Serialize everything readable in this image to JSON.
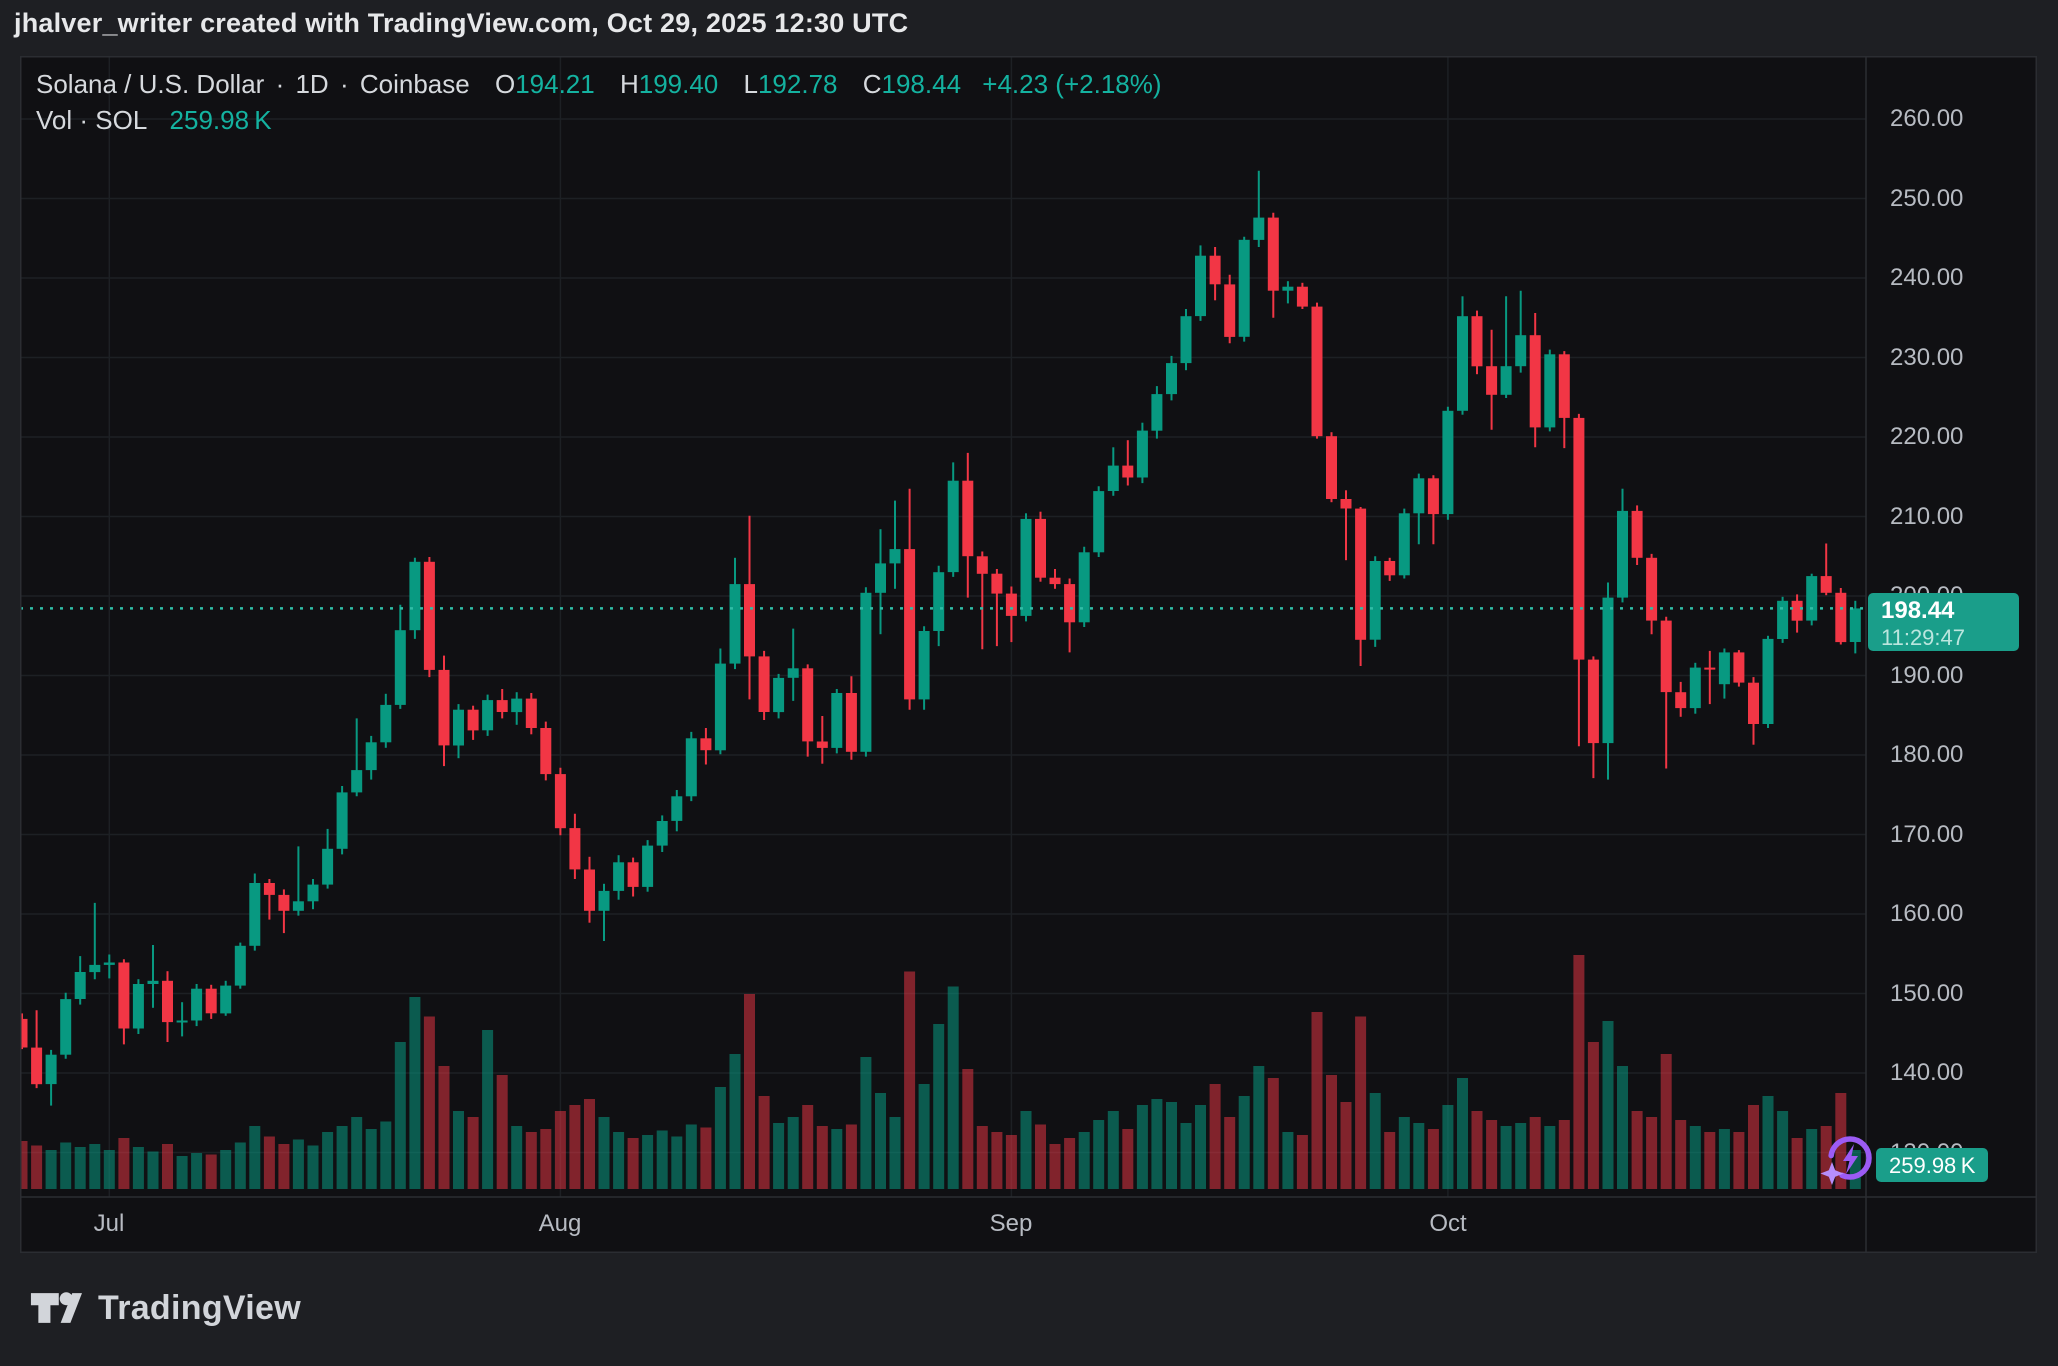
{
  "header": {
    "attribution": "jhalver_writer created with TradingView.com, Oct 29, 2025 12:30 UTC"
  },
  "legend": {
    "symbol": "Solana / U.S. Dollar",
    "sep": "·",
    "interval": "1D",
    "exchange": "Coinbase",
    "o_label": "O",
    "o_value": "194.21",
    "h_label": "H",
    "h_value": "199.40",
    "l_label": "L",
    "l_value": "192.78",
    "c_label": "C",
    "c_value": "198.44",
    "change": "+4.23 (+2.18%)",
    "vol_label": "Vol · SOL",
    "vol_value": "259.98 K"
  },
  "price_scale": {
    "ticks": [
      "260.00",
      "250.00",
      "240.00",
      "230.00",
      "220.00",
      "210.00",
      "200.00",
      "190.00",
      "180.00",
      "170.00",
      "160.00",
      "150.00",
      "140.00",
      "130.00"
    ],
    "price_badge": {
      "price": "198.44",
      "countdown": "11:29:47"
    },
    "volume_badge": "259.98 K"
  },
  "time_scale": {
    "months": [
      "Jul",
      "Aug",
      "Sep",
      "Oct"
    ]
  },
  "footer": {
    "brand": "TradingView"
  },
  "icons": {
    "boost_badge": "lightning-boost-icon",
    "logo": "tradingview-logo-icon"
  },
  "colors": {
    "up": "#089981",
    "down": "#f23645",
    "vol_up": "rgba(8,153,129,0.55)",
    "vol_down": "rgba(242,54,69,0.50)",
    "teal_text": "#14b2a0",
    "badge_bg": "#1a9e8a",
    "grid": "#1d2024",
    "dotted_line": "#2fbda6",
    "axis_text": "#b7bbc2",
    "legend_text": "#d6d9dd",
    "background_outer": "#1e1f23",
    "background_chart": "#101013",
    "frame_border": "#2b2d32",
    "boost_purple": "#9c5bf5",
    "boost_star": "#b78efb"
  },
  "chart_data": {
    "type": "candlestick",
    "title": "Solana / U.S. Dollar · 1D · Coinbase",
    "subtitle_volume": "Vol · SOL 259.98 K",
    "x_axis": {
      "labels": [
        "Jul",
        "Aug",
        "Sep",
        "Oct"
      ],
      "month_start_indices": [
        6,
        37,
        68,
        98
      ],
      "start_date": "Jun 25",
      "end_date": "Oct 29"
    },
    "y_axis": {
      "ref_price": 260,
      "min": 128,
      "max": 262,
      "tick_step": 10,
      "grid": true,
      "side": "right"
    },
    "last": {
      "open": 194.21,
      "high": 199.4,
      "low": 192.78,
      "close": 198.44,
      "change": "+4.23",
      "change_pct": "+2.18%",
      "countdown": "11:29:47",
      "volume_k": 259.98
    },
    "candles": {
      "open": [
        146.8,
        143.2,
        138.6,
        142.3,
        149.3,
        152.7,
        153.6,
        153.9,
        145.6,
        151.2,
        151.6,
        146.4,
        146.6,
        150.6,
        147.5,
        151.0,
        156.0,
        163.9,
        162.4,
        160.4,
        161.6,
        163.7,
        168.2,
        175.3,
        178.1,
        181.6,
        186.3,
        195.7,
        204.3,
        190.7,
        181.2,
        185.7,
        183.1,
        186.9,
        185.4,
        187.1,
        183.4,
        177.6,
        170.8,
        165.6,
        160.4,
        162.9,
        166.5,
        163.4,
        168.6,
        171.7,
        174.8,
        182.1,
        180.6,
        191.5,
        201.5,
        192.4,
        185.4,
        189.7,
        190.9,
        181.7,
        180.9,
        187.8,
        180.4,
        200.4,
        204.1,
        205.9,
        187.0,
        195.6,
        203.0,
        214.5,
        205.0,
        202.8,
        200.3,
        197.5,
        209.7,
        202.3,
        201.5,
        196.7,
        205.5,
        213.2,
        216.4,
        214.9,
        220.8,
        225.4,
        229.3,
        235.2,
        242.8,
        239.2,
        232.6,
        244.8,
        247.6,
        238.4,
        238.9,
        236.4,
        220.1,
        212.2,
        211.0,
        194.5,
        204.4,
        202.6,
        210.4,
        214.8,
        210.3,
        223.3,
        235.2,
        228.9,
        225.3,
        228.9,
        232.8,
        221.2,
        230.4,
        222.4,
        192.0,
        181.5,
        199.8,
        210.7,
        204.8,
        196.9,
        187.9,
        185.9,
        191.0,
        188.9,
        192.9,
        189.1,
        183.9,
        194.6,
        199.4,
        196.9,
        202.5,
        200.4,
        194.21
      ],
      "high": [
        147.5,
        147.9,
        142.9,
        150.1,
        154.7,
        161.4,
        154.9,
        154.3,
        151.8,
        156.1,
        152.8,
        148.9,
        151.2,
        151.1,
        151.6,
        156.4,
        165.1,
        164.4,
        163.1,
        168.5,
        164.4,
        170.7,
        176.1,
        184.6,
        182.4,
        187.7,
        198.9,
        204.8,
        204.9,
        192.5,
        186.4,
        186.2,
        187.6,
        188.3,
        187.9,
        187.8,
        184.2,
        178.4,
        172.6,
        167.2,
        163.8,
        167.4,
        167.1,
        169.3,
        172.4,
        175.6,
        182.9,
        183.4,
        193.4,
        204.8,
        210.1,
        193.1,
        190.2,
        195.9,
        191.4,
        184.9,
        188.3,
        189.9,
        201.1,
        208.4,
        212.0,
        213.5,
        196.2,
        203.8,
        216.8,
        218.0,
        205.6,
        203.4,
        201.2,
        210.4,
        210.6,
        203.4,
        202.2,
        206.2,
        213.8,
        218.7,
        219.6,
        221.8,
        226.4,
        230.2,
        236.1,
        244.1,
        243.9,
        240.4,
        245.2,
        253.5,
        248.2,
        239.6,
        239.4,
        236.9,
        220.6,
        213.3,
        211.2,
        205.0,
        204.8,
        211.0,
        215.4,
        215.2,
        223.8,
        237.7,
        235.9,
        233.5,
        237.7,
        238.4,
        235.6,
        231.0,
        230.8,
        222.9,
        192.4,
        201.7,
        213.5,
        211.4,
        205.3,
        197.4,
        189.2,
        191.6,
        193.1,
        193.4,
        193.2,
        189.8,
        195.0,
        199.9,
        200.2,
        202.8,
        206.6,
        201.0,
        199.4
      ],
      "low": [
        143.0,
        138.1,
        135.9,
        141.8,
        148.6,
        151.8,
        151.9,
        143.6,
        144.9,
        148.2,
        143.9,
        144.6,
        145.9,
        146.8,
        147.2,
        150.6,
        155.4,
        159.3,
        157.6,
        159.8,
        160.6,
        163.2,
        167.5,
        174.8,
        176.9,
        180.9,
        185.8,
        194.6,
        189.8,
        178.6,
        179.6,
        181.9,
        182.4,
        184.6,
        183.8,
        182.6,
        176.8,
        169.9,
        164.4,
        158.9,
        156.6,
        161.8,
        162.2,
        162.8,
        167.8,
        170.4,
        174.2,
        178.8,
        180.1,
        190.8,
        187.0,
        184.4,
        184.6,
        186.8,
        179.8,
        178.9,
        180.2,
        179.4,
        179.8,
        195.2,
        200.9,
        185.7,
        185.7,
        193.7,
        202.4,
        199.8,
        193.3,
        193.7,
        194.2,
        196.8,
        201.8,
        200.9,
        192.9,
        196.1,
        204.9,
        212.6,
        213.9,
        214.2,
        219.8,
        224.6,
        228.4,
        234.6,
        237.2,
        231.8,
        232.0,
        243.9,
        235.0,
        236.8,
        236.1,
        219.8,
        211.8,
        204.5,
        191.2,
        193.6,
        201.9,
        202.2,
        206.5,
        206.5,
        209.6,
        222.8,
        227.9,
        220.9,
        224.9,
        228.1,
        218.7,
        220.7,
        218.6,
        181.1,
        177.1,
        176.9,
        199.2,
        203.9,
        195.2,
        178.3,
        184.8,
        185.2,
        186.4,
        187.1,
        188.6,
        181.3,
        183.4,
        194.1,
        195.4,
        196.3,
        200.1,
        193.9,
        192.78
      ],
      "close": [
        143.2,
        138.6,
        142.3,
        149.3,
        152.7,
        153.6,
        153.9,
        145.6,
        151.2,
        151.6,
        146.4,
        146.6,
        150.6,
        147.5,
        151.0,
        156.0,
        163.9,
        162.4,
        160.4,
        161.6,
        163.7,
        168.2,
        175.3,
        178.1,
        181.6,
        186.3,
        195.7,
        204.3,
        190.7,
        181.2,
        185.7,
        183.1,
        186.9,
        185.4,
        187.1,
        183.4,
        177.6,
        170.8,
        165.6,
        160.4,
        162.9,
        166.5,
        163.4,
        168.6,
        171.7,
        174.8,
        182.1,
        180.6,
        191.5,
        201.5,
        192.4,
        185.4,
        189.7,
        190.9,
        181.7,
        180.9,
        187.8,
        180.4,
        200.4,
        204.1,
        205.9,
        187.0,
        195.6,
        203.0,
        214.5,
        205.0,
        202.8,
        200.3,
        197.5,
        209.7,
        202.3,
        201.5,
        196.7,
        205.5,
        213.2,
        216.4,
        214.9,
        220.8,
        225.4,
        229.3,
        235.2,
        242.8,
        239.2,
        232.6,
        244.8,
        247.6,
        238.4,
        238.9,
        236.4,
        220.1,
        212.2,
        211.0,
        194.5,
        204.4,
        202.6,
        210.4,
        214.8,
        210.3,
        223.3,
        235.2,
        228.9,
        225.3,
        228.9,
        232.8,
        221.2,
        230.4,
        222.4,
        192.0,
        181.5,
        199.8,
        210.7,
        204.8,
        196.9,
        187.9,
        185.9,
        191.0,
        190.9,
        192.9,
        189.1,
        183.9,
        194.6,
        199.4,
        196.9,
        202.5,
        200.4,
        194.2,
        198.44
      ],
      "volume_k": [
        320,
        290,
        260,
        310,
        280,
        300,
        260,
        340,
        280,
        250,
        300,
        220,
        240,
        230,
        260,
        310,
        420,
        350,
        300,
        330,
        290,
        380,
        420,
        480,
        400,
        450,
        980,
        1280,
        1150,
        820,
        520,
        480,
        1060,
        760,
        420,
        380,
        400,
        520,
        560,
        600,
        480,
        380,
        340,
        360,
        390,
        350,
        430,
        410,
        680,
        900,
        1300,
        620,
        440,
        480,
        560,
        420,
        400,
        430,
        880,
        640,
        480,
        1450,
        700,
        1100,
        1350,
        800,
        420,
        380,
        360,
        520,
        430,
        300,
        340,
        380,
        460,
        520,
        400,
        560,
        600,
        580,
        440,
        560,
        700,
        480,
        620,
        820,
        740,
        380,
        360,
        1180,
        760,
        580,
        1150,
        640,
        380,
        480,
        440,
        400,
        560,
        740,
        520,
        460,
        420,
        440,
        480,
        420,
        460,
        1560,
        980,
        1120,
        820,
        520,
        480,
        900,
        460,
        420,
        380,
        400,
        380,
        560,
        620,
        520,
        340,
        400,
        420,
        640,
        259.98
      ]
    }
  }
}
